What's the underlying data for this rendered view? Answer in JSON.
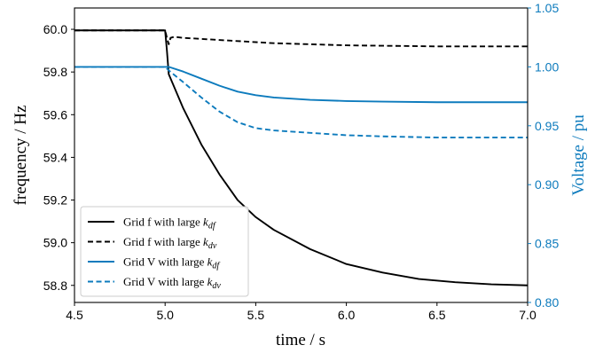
{
  "chart_data": {
    "type": "line",
    "xlabel": "time / s",
    "ylabel_left": "frequency / Hz",
    "ylabel_right": "Voltage / pu",
    "xlim": [
      4.5,
      7.0
    ],
    "ylim_left": [
      58.72,
      60.1
    ],
    "ylim_right": [
      0.8,
      1.05
    ],
    "xticks": [
      "4.5",
      "5.0",
      "5.5",
      "6.0",
      "6.5",
      "7.0"
    ],
    "yticks_left": [
      "58.8",
      "59.0",
      "59.2",
      "59.4",
      "59.6",
      "59.8",
      "60.0"
    ],
    "yticks_right": [
      "0.80",
      "0.85",
      "0.90",
      "0.95",
      "1.00",
      "1.05"
    ],
    "grid": false,
    "legend_position": "lower-left",
    "colors": {
      "black": "#000000",
      "blue": "#0d7bbd"
    },
    "series": [
      {
        "name": "Grid f with large k_df",
        "legend": {
          "prefix": "Grid f with large ",
          "k": "k",
          "sub": "df"
        },
        "axis": "left",
        "color": "#000000",
        "dash": "solid",
        "x": [
          4.5,
          5.0,
          5.01,
          5.02,
          5.1,
          5.2,
          5.3,
          5.4,
          5.5,
          5.6,
          5.8,
          6.0,
          6.2,
          6.4,
          6.6,
          6.8,
          7.0
        ],
        "y": [
          59.995,
          59.995,
          59.9,
          59.79,
          59.63,
          59.46,
          59.32,
          59.2,
          59.12,
          59.06,
          58.97,
          58.9,
          58.86,
          58.83,
          58.815,
          58.805,
          58.8
        ]
      },
      {
        "name": "Grid f with large k_dv",
        "legend": {
          "prefix": "Grid f with large ",
          "k": "k",
          "sub": "dv"
        },
        "axis": "left",
        "color": "#000000",
        "dash": "dashed",
        "x": [
          4.5,
          5.0,
          5.01,
          5.02,
          5.03,
          5.05,
          5.1,
          5.2,
          5.4,
          5.6,
          6.0,
          6.5,
          7.0
        ],
        "y": [
          59.995,
          59.995,
          59.96,
          59.93,
          59.96,
          59.965,
          59.96,
          59.955,
          59.945,
          59.935,
          59.925,
          59.92,
          59.92
        ]
      },
      {
        "name": "Grid V with large k_df",
        "legend": {
          "prefix": "Grid V with large ",
          "k": "k",
          "sub": "df"
        },
        "axis": "right",
        "color": "#0d7bbd",
        "dash": "solid",
        "x": [
          4.5,
          5.0,
          5.02,
          5.1,
          5.2,
          5.3,
          5.4,
          5.5,
          5.6,
          5.8,
          6.0,
          6.2,
          6.5,
          7.0
        ],
        "y": [
          1.0,
          1.0,
          1.0,
          0.996,
          0.99,
          0.984,
          0.979,
          0.976,
          0.974,
          0.972,
          0.971,
          0.9705,
          0.97,
          0.97
        ]
      },
      {
        "name": "Grid V with large k_dv",
        "legend": {
          "prefix": "Grid V with large ",
          "k": "k",
          "sub": "dv"
        },
        "axis": "right",
        "color": "#0d7bbd",
        "dash": "dashed",
        "x": [
          4.5,
          5.0,
          5.02,
          5.1,
          5.2,
          5.3,
          5.4,
          5.5,
          5.6,
          5.8,
          6.0,
          6.2,
          6.5,
          7.0
        ],
        "y": [
          1.0,
          1.0,
          0.997,
          0.987,
          0.974,
          0.962,
          0.953,
          0.948,
          0.946,
          0.944,
          0.942,
          0.941,
          0.94,
          0.94
        ]
      }
    ]
  }
}
